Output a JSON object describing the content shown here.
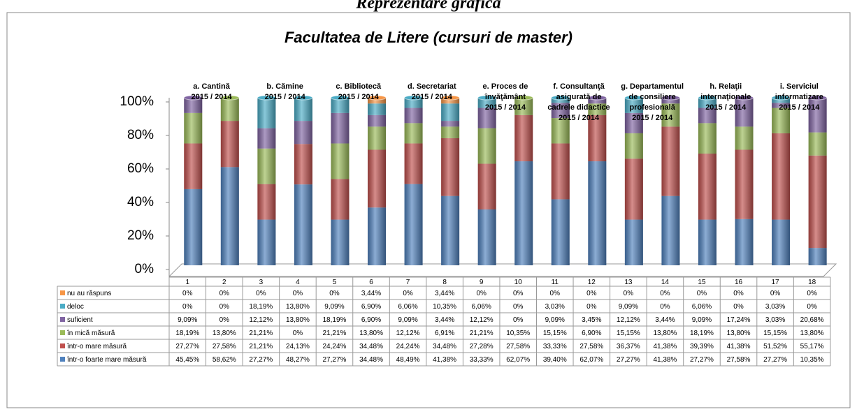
{
  "heading": "Reprezentare grafică",
  "chart_data": {
    "type": "bar",
    "stacked": true,
    "title": "Facultatea de Litere (cursuri de master)",
    "categories": [
      "1",
      "2",
      "3",
      "4",
      "5",
      "6",
      "7",
      "8",
      "9",
      "10",
      "11",
      "12",
      "13",
      "14",
      "15",
      "16",
      "17",
      "18"
    ],
    "ylim": [
      0,
      100
    ],
    "yticks": [
      {
        "value": 0,
        "label": "0%"
      },
      {
        "value": 20,
        "label": "20%"
      },
      {
        "value": 40,
        "label": "40%"
      },
      {
        "value": 60,
        "label": "60%"
      },
      {
        "value": 80,
        "label": "80%"
      },
      {
        "value": 100,
        "label": "100%"
      }
    ],
    "series": [
      {
        "name": "într-o foarte mare măsură",
        "color": "#4f81bd",
        "values": [
          45.45,
          58.62,
          27.27,
          48.27,
          27.27,
          34.48,
          48.49,
          41.38,
          33.33,
          62.07,
          39.4,
          62.07,
          27.27,
          41.38,
          27.27,
          27.58,
          27.27,
          10.35
        ],
        "value_labels": [
          "45,45%",
          "58,62%",
          "27,27%",
          "48,27%",
          "27,27%",
          "34,48%",
          "48,49%",
          "41,38%",
          "33,33%",
          "62,07%",
          "39,40%",
          "62,07%",
          "27,27%",
          "41,38%",
          "27,27%",
          "27,58%",
          "27,27%",
          "10,35%"
        ]
      },
      {
        "name": "într-o mare măsură",
        "color": "#c0504d",
        "values": [
          27.27,
          27.58,
          21.21,
          24.13,
          24.24,
          34.48,
          24.24,
          34.48,
          27.28,
          27.58,
          33.33,
          27.58,
          36.37,
          41.38,
          39.39,
          41.38,
          51.52,
          55.17
        ],
        "value_labels": [
          "27,27%",
          "27,58%",
          "21,21%",
          "24,13%",
          "24,24%",
          "34,48%",
          "24,24%",
          "34,48%",
          "27,28%",
          "27,58%",
          "33,33%",
          "27,58%",
          "36,37%",
          "41,38%",
          "39,39%",
          "41,38%",
          "51,52%",
          "55,17%"
        ]
      },
      {
        "name": "în mică măsură",
        "color": "#9bbb59",
        "values": [
          18.19,
          13.8,
          21.21,
          0,
          21.21,
          13.8,
          12.12,
          6.91,
          21.21,
          10.35,
          15.15,
          6.9,
          15.15,
          13.8,
          18.19,
          13.8,
          15.15,
          13.8
        ],
        "value_labels": [
          "18,19%",
          "13,80%",
          "21,21%",
          "0%",
          "21,21%",
          "13,80%",
          "12,12%",
          "6,91%",
          "21,21%",
          "10,35%",
          "15,15%",
          "6,90%",
          "15,15%",
          "13,80%",
          "18,19%",
          "13,80%",
          "15,15%",
          "13,80%"
        ]
      },
      {
        "name": "suficient",
        "color": "#8064a2",
        "values": [
          9.09,
          0,
          12.12,
          13.8,
          18.19,
          6.9,
          9.09,
          3.44,
          12.12,
          0,
          9.09,
          3.45,
          12.12,
          3.44,
          9.09,
          17.24,
          3.03,
          20.68
        ],
        "value_labels": [
          "9,09%",
          "0%",
          "12,12%",
          "13,80%",
          "18,19%",
          "6,90%",
          "9,09%",
          "3,44%",
          "12,12%",
          "0%",
          "9,09%",
          "3,45%",
          "12,12%",
          "3,44%",
          "9,09%",
          "17,24%",
          "3,03%",
          "20,68%"
        ]
      },
      {
        "name": "deloc",
        "color": "#4bacc6",
        "values": [
          0,
          0,
          18.19,
          13.8,
          9.09,
          6.9,
          6.06,
          10.35,
          6.06,
          0,
          3.03,
          0,
          9.09,
          0,
          6.06,
          0,
          3.03,
          0
        ],
        "value_labels": [
          "0%",
          "0%",
          "18,19%",
          "13,80%",
          "9,09%",
          "6,90%",
          "6,06%",
          "10,35%",
          "6,06%",
          "0%",
          "3,03%",
          "0%",
          "9,09%",
          "0%",
          "6,06%",
          "0%",
          "3,03%",
          "0%"
        ]
      },
      {
        "name": "nu au răspuns",
        "color": "#f79646",
        "values": [
          0,
          0,
          0,
          0,
          0,
          3.44,
          0,
          3.44,
          0,
          0,
          0,
          0,
          0,
          0,
          0,
          0,
          0,
          0
        ],
        "value_labels": [
          "0%",
          "0%",
          "0%",
          "0%",
          "0%",
          "3,44%",
          "0%",
          "3,44%",
          "0%",
          "0%",
          "0%",
          "0%",
          "0%",
          "0%",
          "0%",
          "0%",
          "0%",
          "0%"
        ]
      }
    ],
    "groups": [
      {
        "label": [
          "a. Cantină"
        ],
        "period": "2015 / 2014"
      },
      {
        "label": [
          "b. Cămine"
        ],
        "period": "2015 / 2014"
      },
      {
        "label": [
          "c. Bibliotecă"
        ],
        "period": "2015 / 2014"
      },
      {
        "label": [
          "d. Secretariat"
        ],
        "period": "2015 / 2014"
      },
      {
        "label": [
          "e. Proces de",
          "învăţământ"
        ],
        "period": "2015 / 2014"
      },
      {
        "label": [
          "f. Consultanţă",
          "asigurată de",
          "cadrele didactice"
        ],
        "period": "2015 / 2014"
      },
      {
        "label": [
          "g. Departamentul",
          "de consiliere",
          "profesională"
        ],
        "period": "2015 / 2014"
      },
      {
        "label": [
          "h. Relaţii",
          "internaţionale"
        ],
        "period": "2015 / 2014"
      },
      {
        "label": [
          "i. Serviciul",
          "informatizare"
        ],
        "period": "2015 / 2014"
      }
    ]
  }
}
